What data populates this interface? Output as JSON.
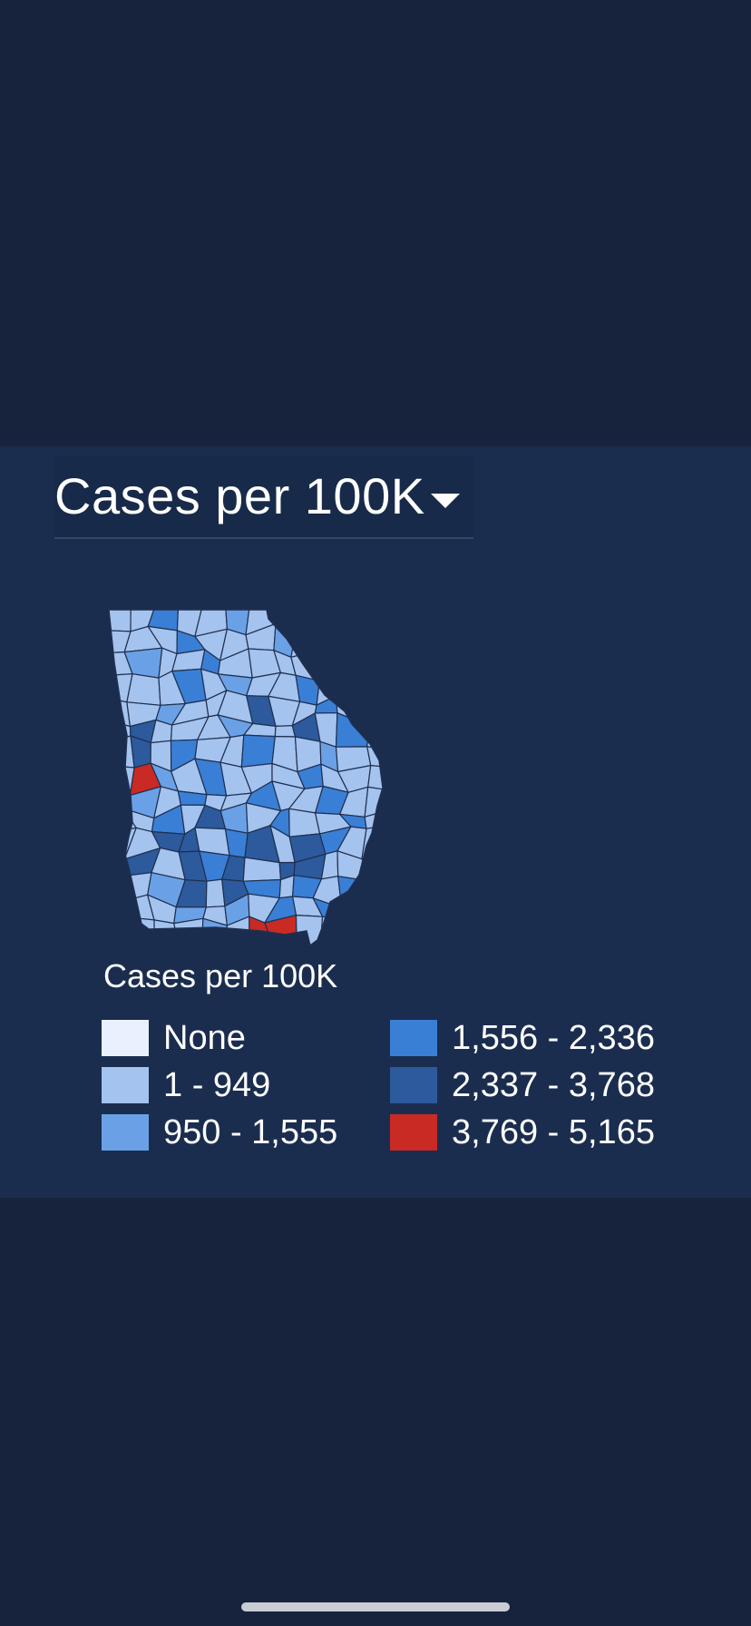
{
  "metric_selector": {
    "label": "Cases per 100K",
    "icon": "caret-down-icon"
  },
  "map": {
    "region": "Georgia",
    "border_color": "#1f2f4f"
  },
  "legend": {
    "title": "Cases per 100K",
    "items": [
      {
        "label": "None",
        "color": "#e8f1fd"
      },
      {
        "label": "1 - 949",
        "color": "#a4c3ee"
      },
      {
        "label": "950 - 1,555",
        "color": "#6aa1e6"
      },
      {
        "label": "1,556 - 2,336",
        "color": "#3a7fd6"
      },
      {
        "label": "2,337 - 3,768",
        "color": "#2c5a9c"
      },
      {
        "label": "3,769 - 5,165",
        "color": "#c92a23"
      }
    ]
  },
  "colors": {
    "background": "#17233d",
    "panel": "#1b2d4f",
    "text": "#ffffff"
  }
}
